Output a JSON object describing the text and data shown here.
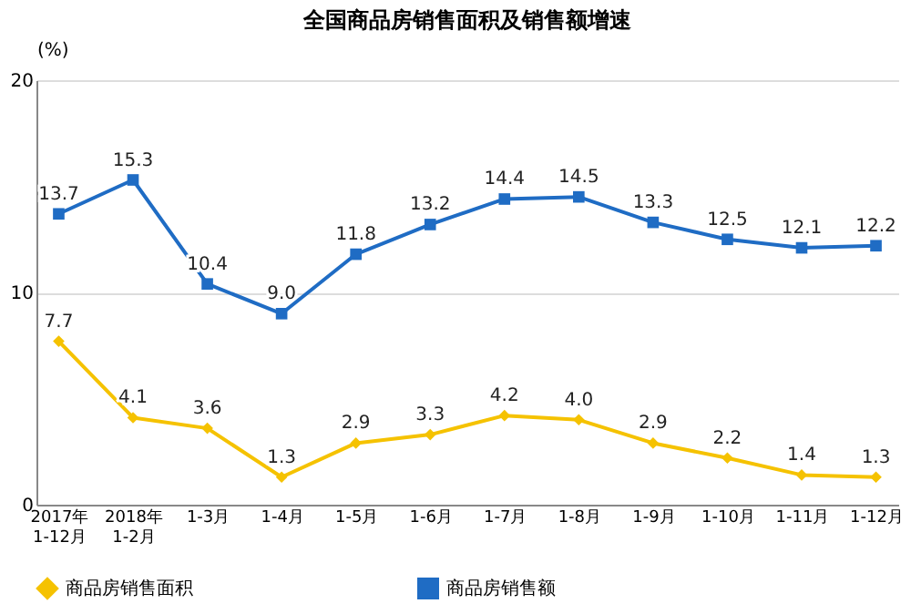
{
  "chart_data": {
    "type": "line",
    "title": "全国商品房销售面积及销售额增速",
    "ylabel": "(%)",
    "categories": [
      "2017年\n1-12月",
      "2018年\n1-2月",
      "1-3月",
      "1-4月",
      "1-5月",
      "1-6月",
      "1-7月",
      "1-8月",
      "1-9月",
      "1-10月",
      "1-11月",
      "1-12月"
    ],
    "series": [
      {
        "name": "商品房销售面积",
        "color": "#f5c200",
        "marker": "diamond",
        "values": [
          7.7,
          4.1,
          3.6,
          1.3,
          2.9,
          3.3,
          4.2,
          4.0,
          2.9,
          2.2,
          1.4,
          1.3
        ],
        "value_labels": [
          "7.7",
          "4.1",
          "3.6",
          "1.3",
          "2.9",
          "3.3",
          "4.2",
          "4.0",
          "2.9",
          "2.2",
          "1.4",
          "1.3"
        ]
      },
      {
        "name": "商品房销售额",
        "color": "#1f6cc4",
        "marker": "square",
        "values": [
          13.7,
          15.3,
          10.4,
          9.0,
          11.8,
          13.2,
          14.4,
          14.5,
          13.3,
          12.5,
          12.1,
          12.2
        ],
        "value_labels": [
          "13.7",
          "15.3",
          "10.4",
          "9.0",
          "11.8",
          "13.2",
          "14.4",
          "14.5",
          "13.3",
          "12.5",
          "12.1",
          "12.2"
        ]
      }
    ],
    "ylim": [
      0,
      20
    ],
    "yticks": [
      0,
      10,
      20
    ],
    "grid": "y",
    "legend": "bottom",
    "line_style": "solid"
  }
}
